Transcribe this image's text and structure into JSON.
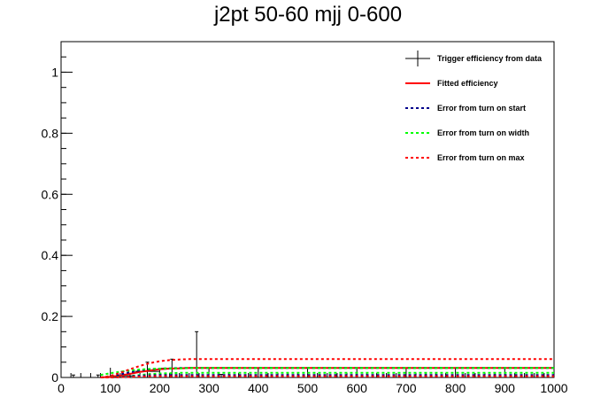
{
  "chart_data": {
    "type": "line",
    "title": "j2pt 50-60 mjj 0-600",
    "xlabel": "",
    "ylabel": "",
    "xlim": [
      0,
      1000
    ],
    "ylim": [
      0,
      1.1
    ],
    "x_ticks": [
      0,
      100,
      200,
      300,
      400,
      500,
      600,
      700,
      800,
      900,
      1000
    ],
    "y_ticks": [
      0,
      0.2,
      0.4,
      0.6,
      0.8,
      1
    ],
    "x_tick_labels": [
      "0",
      "100",
      "200",
      "300",
      "400",
      "500",
      "600",
      "700",
      "800",
      "900",
      "1000"
    ],
    "y_tick_labels": [
      "0",
      "0.2",
      "0.4",
      "0.6",
      "0.8",
      "1"
    ],
    "grid": false,
    "legend_position": "top-right",
    "colors": {
      "data": "#000000",
      "fit": "#ff0000",
      "turn_on_start": "#00008b",
      "turn_on_width": "#00ff00",
      "turn_on_max": "#ff0000"
    },
    "series": [
      {
        "name": "Trigger efficiency from data",
        "kind": "points",
        "color": "#000000",
        "points": [
          {
            "x": 25,
            "y": 0.0,
            "xerr": 25,
            "yerr": 0.008
          },
          {
            "x": 75,
            "y": 0.0,
            "xerr": 25,
            "yerr": 0.008
          },
          {
            "x": 125,
            "y": 0.005,
            "xerr": 25,
            "yerr": 0.015
          },
          {
            "x": 175,
            "y": 0.02,
            "xerr": 25,
            "yerr": 0.03
          },
          {
            "x": 225,
            "y": 0.03,
            "xerr": 25,
            "yerr": 0.03
          },
          {
            "x": 275,
            "y": 0.0,
            "xerr": 25,
            "yerr": 0.15
          },
          {
            "x": 325,
            "y": 0.0,
            "xerr": 25,
            "yerr": 0.01
          }
        ]
      },
      {
        "name": "Fitted efficiency",
        "kind": "line",
        "style": "solid",
        "color": "#ff0000",
        "x": [
          80,
          100,
          120,
          140,
          160,
          180,
          200,
          220,
          240,
          260,
          280,
          300,
          1000
        ],
        "y": [
          0.0,
          0.002,
          0.006,
          0.012,
          0.018,
          0.023,
          0.027,
          0.029,
          0.03,
          0.031,
          0.031,
          0.031,
          0.031
        ]
      },
      {
        "name": "Error from turn on start",
        "kind": "line",
        "style": "dashed",
        "color": "#00008b",
        "x": [
          80,
          100,
          120,
          140,
          160,
          180,
          200,
          220,
          240,
          260,
          280,
          300,
          1000
        ],
        "y": [
          0.0,
          0.004,
          0.01,
          0.017,
          0.023,
          0.027,
          0.029,
          0.03,
          0.031,
          0.031,
          0.031,
          0.031,
          0.031
        ]
      },
      {
        "name": "Error from turn on width",
        "kind": "line",
        "style": "dashed",
        "color": "#00ff00",
        "x": [
          80,
          100,
          120,
          140,
          160,
          180,
          200,
          220,
          240,
          260,
          280,
          300,
          1000
        ],
        "y": [
          0.008,
          0.014,
          0.019,
          0.023,
          0.026,
          0.028,
          0.029,
          0.03,
          0.03,
          0.031,
          0.031,
          0.031,
          0.031
        ]
      },
      {
        "name": "Error from turn on max",
        "kind": "line",
        "style": "dashed",
        "color": "#ff0000",
        "x": [
          80,
          100,
          120,
          140,
          160,
          180,
          200,
          220,
          240,
          260,
          280,
          300,
          1000
        ],
        "y": [
          0.0,
          0.005,
          0.015,
          0.027,
          0.038,
          0.047,
          0.053,
          0.057,
          0.059,
          0.06,
          0.06,
          0.06,
          0.06
        ]
      },
      {
        "name": "",
        "kind": "line",
        "style": "dashed",
        "color": "#00ff00",
        "x": [
          80,
          100,
          120,
          140,
          160,
          180,
          200,
          220,
          240,
          260,
          280,
          300,
          1000
        ],
        "y": [
          0.0,
          0.001,
          0.003,
          0.005,
          0.008,
          0.011,
          0.013,
          0.014,
          0.015,
          0.015,
          0.015,
          0.015,
          0.015
        ]
      },
      {
        "name": "",
        "kind": "line",
        "style": "dashed",
        "color": "#00008b",
        "x": [
          80,
          100,
          120,
          140,
          160,
          180,
          200,
          220,
          240,
          260,
          280,
          300,
          1000
        ],
        "y": [
          0.0,
          0.0,
          0.002,
          0.004,
          0.006,
          0.007,
          0.008,
          0.008,
          0.008,
          0.008,
          0.008,
          0.008,
          0.008
        ]
      },
      {
        "name": "",
        "kind": "line",
        "style": "dashed",
        "color": "#ff0000",
        "x": [
          80,
          100,
          120,
          140,
          160,
          180,
          200,
          220,
          240,
          260,
          280,
          300,
          1000
        ],
        "y": [
          0.0,
          0.0,
          0.001,
          0.002,
          0.003,
          0.004,
          0.004,
          0.004,
          0.004,
          0.004,
          0.004,
          0.004,
          0.004
        ]
      }
    ],
    "legend": [
      {
        "label": "Trigger efficiency from data",
        "marker": "errorbar",
        "color": "#000000",
        "style": "solid"
      },
      {
        "label": "Fitted efficiency",
        "marker": "line",
        "color": "#ff0000",
        "style": "solid"
      },
      {
        "label": "Error from turn on start",
        "marker": "line",
        "color": "#00008b",
        "style": "dashed"
      },
      {
        "label": "Error from turn on width",
        "marker": "line",
        "color": "#00ff00",
        "style": "dashed"
      },
      {
        "label": "Error from turn on max",
        "marker": "line",
        "color": "#ff0000",
        "style": "dashed"
      }
    ]
  }
}
